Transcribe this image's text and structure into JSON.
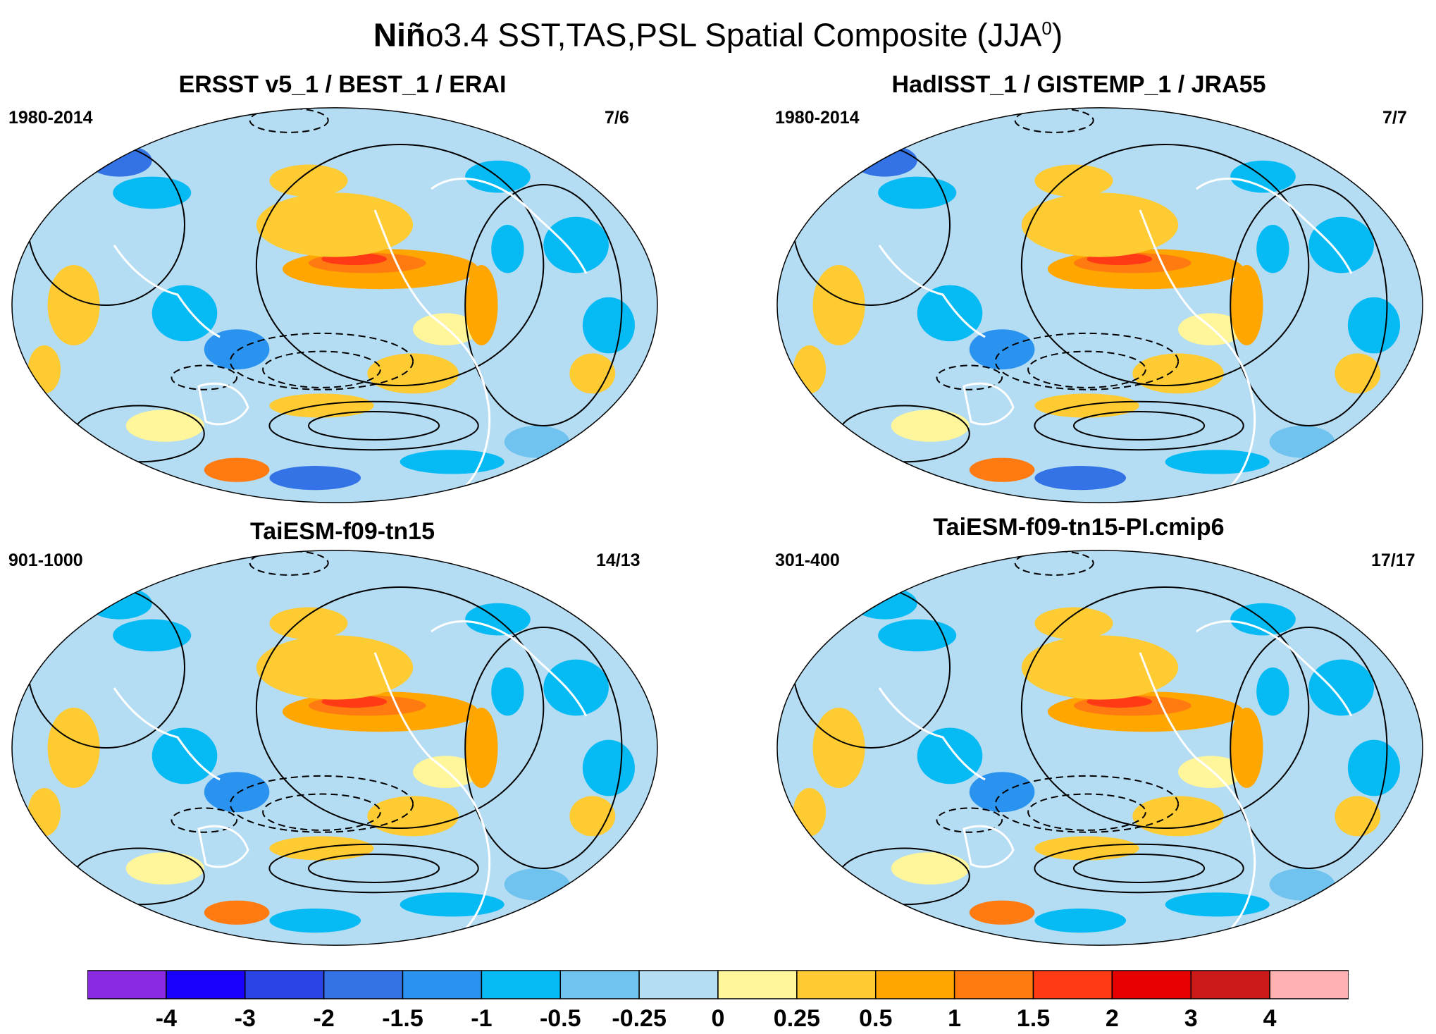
{
  "title": {
    "bold": "Niñ",
    "rest": "o3.4 SST,TAS,PSL Spatial Composite (JJA",
    "sup": "0",
    "close": ")"
  },
  "panels": [
    {
      "title": "ERSST v5_1 / BEST_1 / ERAI",
      "period": "1980-2014",
      "counts": "7/6"
    },
    {
      "title": "HadISST_1 / GISTEMP_1 / JRA55",
      "period": "1980-2014",
      "counts": "7/7"
    },
    {
      "title": "TaiESM-f09-tn15",
      "period": "901-1000",
      "counts": "14/13"
    },
    {
      "title": "TaiESM-f09-tn15-PI.cmip6",
      "period": "301-400",
      "counts": "17/17"
    }
  ],
  "colorbar": {
    "colors": [
      "#8a2be2",
      "#1a00ff",
      "#2a44e8",
      "#3373e6",
      "#2a93f0",
      "#06baf4",
      "#6fc3ee",
      "#b4dcf2",
      "#fff59a",
      "#ffcb33",
      "#ffa700",
      "#ff7a10",
      "#ff3a14",
      "#e60000",
      "#cc1a1a",
      "#ffb0b0"
    ],
    "labels": [
      "-4",
      "-3",
      "-2",
      "-1.5",
      "-1",
      "-0.5",
      "-0.25",
      "0",
      "0.25",
      "0.5",
      "1",
      "1.5",
      "2",
      "3",
      "4"
    ]
  }
}
